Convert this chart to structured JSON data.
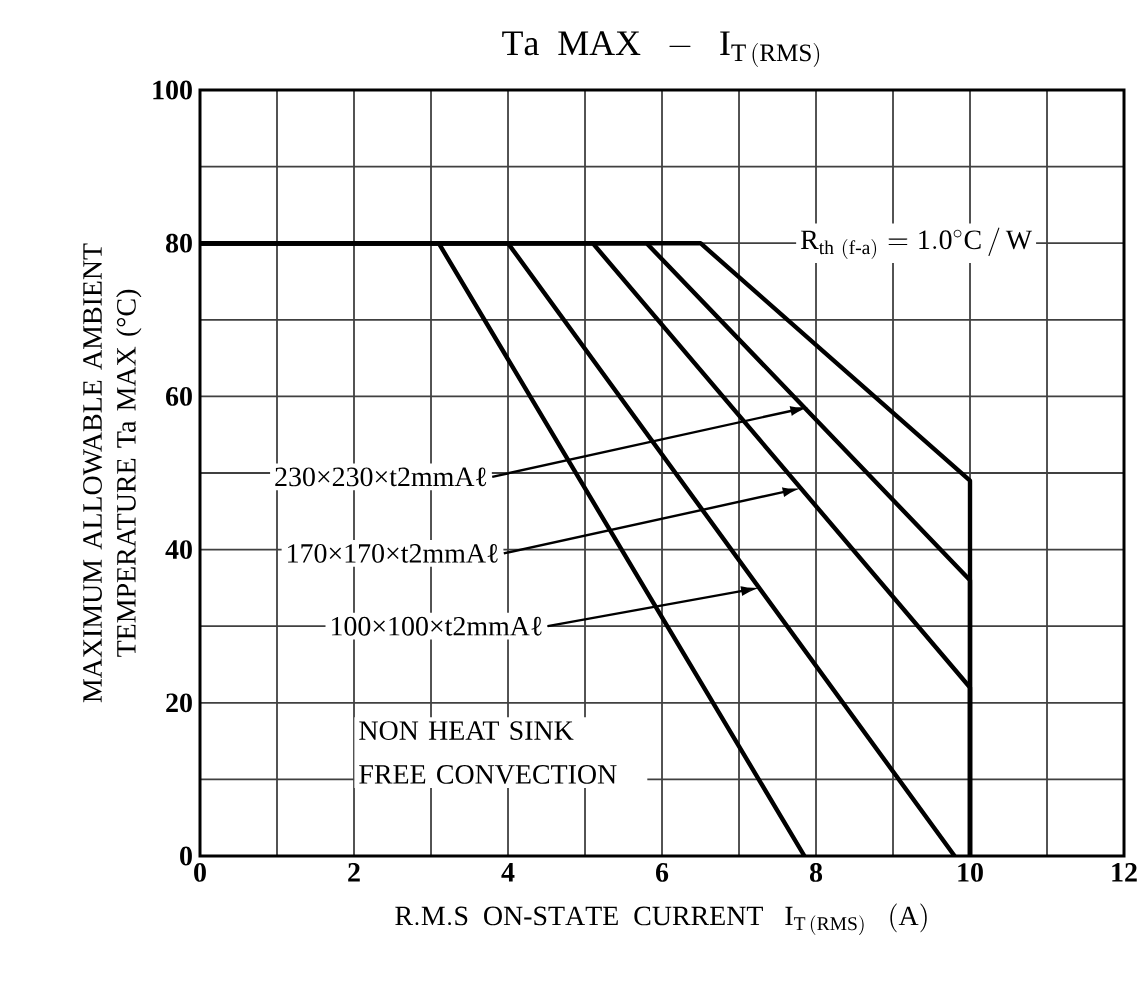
{
  "chart_data": {
    "type": "line",
    "title": "\\mathrm{Ta\\ \\ MAX\\ \\ -\\ \\ I_{T\\,(RMS)}}",
    "xlabel": "\\mathrm{R.M.S\\ \\ ON\\text{-}STATE\\ \\ CURRENT\\ \\ \\ I_{T\\,(RMS)}\\ \\ \\ (A)}",
    "ylabel": "MAXIMUM ALLOWABLE AMBIENT TEMPERATURE  Ta MAX  (°C)",
    "xlim": [
      0,
      12
    ],
    "ylim": [
      0,
      100
    ],
    "xticks": [
      0,
      2,
      4,
      6,
      8,
      10,
      12
    ],
    "yticks": [
      0,
      20,
      40,
      60,
      80,
      100
    ],
    "grid": true,
    "legend": false,
    "marker": "none",
    "line_style": "solid",
    "annotations": [
      {
        "text": "100×100×t2mmAℓ",
        "x": 7.26,
        "y": 35
      },
      {
        "text": "170×170×t2mmAℓ",
        "x": 7.8,
        "y": 48
      },
      {
        "text": "230×230×t2mmAℓ",
        "x": 7.9,
        "y": 58.6
      },
      "\\mathrm{R_{th\\ (f\\text{-}a)}=1.0^{\\circ}C\\,/\\,W}"
    ],
    "series": [
      {
        "name": "NON HEAT SINK FREE CONVECTION",
        "color": "#000000",
        "x": [
          0,
          3.1,
          7.85
        ],
        "values": [
          80,
          80,
          0
        ]
      },
      {
        "color": "#000000",
        "x": [
          0,
          4.0,
          9.8
        ],
        "values": [
          80,
          80,
          0
        ]
      },
      {
        "color": "#000000",
        "x": [
          0,
          5.1,
          10,
          10
        ],
        "values": [
          80,
          80,
          22,
          0
        ]
      },
      {
        "color": "#000000",
        "x": [
          0,
          5.8,
          10,
          10
        ],
        "values": [
          80,
          80,
          36,
          0
        ]
      },
      {
        "color": "#000000",
        "x": [
          0,
          6.5,
          10,
          10
        ],
        "values": [
          80,
          80,
          49,
          0
        ]
      }
    ]
  }
}
